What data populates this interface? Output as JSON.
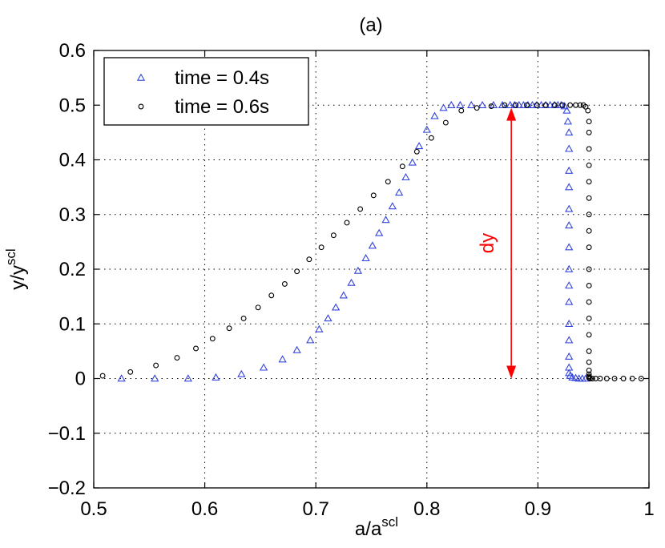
{
  "chart_data": {
    "type": "scatter",
    "title": "(a)",
    "xlabel": {
      "base": "a/a",
      "sup": "scl"
    },
    "ylabel": {
      "base": "y/y",
      "sup": "scl"
    },
    "xlim": [
      0.5,
      1.0
    ],
    "ylim": [
      -0.2,
      0.6
    ],
    "xticks": [
      0.5,
      0.6,
      0.7,
      0.8,
      0.9,
      1.0
    ],
    "xtick_labels": [
      "0.5",
      "0.6",
      "0.7",
      "0.8",
      "0.9",
      "1"
    ],
    "yticks": [
      -0.2,
      -0.1,
      0,
      0.1,
      0.2,
      0.3,
      0.4,
      0.5,
      0.6
    ],
    "ytick_labels": [
      "−0.2",
      "−0.1",
      "0",
      "0.1",
      "0.2",
      "0.3",
      "0.4",
      "0.5",
      "0.6"
    ],
    "grid": true,
    "legend_position": "top-left",
    "series": [
      {
        "name": "time = 0.4s",
        "marker": "triangle",
        "color": "#3344dd",
        "x": [
          0.525,
          0.555,
          0.585,
          0.61,
          0.633,
          0.653,
          0.67,
          0.683,
          0.695,
          0.703,
          0.711,
          0.718,
          0.725,
          0.732,
          0.738,
          0.745,
          0.751,
          0.757,
          0.763,
          0.769,
          0.775,
          0.781,
          0.787,
          0.793,
          0.8,
          0.807,
          0.815,
          0.822,
          0.83,
          0.84,
          0.85,
          0.86,
          0.868,
          0.875,
          0.879,
          0.883,
          0.887,
          0.891,
          0.895,
          0.899,
          0.903,
          0.907,
          0.911,
          0.915,
          0.918,
          0.921,
          0.924,
          0.926,
          0.927,
          0.928,
          0.928,
          0.928,
          0.928,
          0.928,
          0.928,
          0.928,
          0.928,
          0.928,
          0.928,
          0.928,
          0.928,
          0.928,
          0.928,
          0.928,
          0.929,
          0.931,
          0.934,
          0.937,
          0.94,
          0.943
        ],
        "y": [
          0.0,
          0.0,
          0.0,
          0.002,
          0.008,
          0.02,
          0.035,
          0.052,
          0.07,
          0.09,
          0.11,
          0.13,
          0.152,
          0.175,
          0.197,
          0.22,
          0.243,
          0.266,
          0.29,
          0.315,
          0.34,
          0.368,
          0.395,
          0.425,
          0.455,
          0.48,
          0.495,
          0.5,
          0.5,
          0.5,
          0.5,
          0.5,
          0.5,
          0.5,
          0.5,
          0.5,
          0.5,
          0.5,
          0.5,
          0.5,
          0.5,
          0.5,
          0.5,
          0.5,
          0.5,
          0.5,
          0.498,
          0.49,
          0.47,
          0.45,
          0.42,
          0.38,
          0.35,
          0.31,
          0.28,
          0.24,
          0.2,
          0.17,
          0.14,
          0.1,
          0.07,
          0.04,
          0.02,
          0.01,
          0.005,
          0.002,
          0.001,
          0.0,
          0.0,
          0.0
        ]
      },
      {
        "name": "time = 0.6s",
        "marker": "circle",
        "color": "#000000",
        "x": [
          0.508,
          0.533,
          0.556,
          0.575,
          0.592,
          0.607,
          0.622,
          0.635,
          0.648,
          0.66,
          0.672,
          0.683,
          0.694,
          0.705,
          0.716,
          0.728,
          0.74,
          0.752,
          0.765,
          0.778,
          0.791,
          0.804,
          0.817,
          0.831,
          0.845,
          0.858,
          0.87,
          0.88,
          0.89,
          0.899,
          0.907,
          0.915,
          0.922,
          0.929,
          0.934,
          0.938,
          0.941,
          0.943,
          0.945,
          0.946,
          0.946,
          0.946,
          0.946,
          0.946,
          0.946,
          0.946,
          0.946,
          0.946,
          0.946,
          0.946,
          0.946,
          0.946,
          0.946,
          0.946,
          0.946,
          0.946,
          0.946,
          0.946,
          0.946,
          0.946,
          0.947,
          0.949,
          0.952,
          0.956,
          0.962,
          0.969,
          0.977,
          0.985,
          0.993
        ],
        "y": [
          0.005,
          0.012,
          0.024,
          0.038,
          0.055,
          0.073,
          0.092,
          0.11,
          0.13,
          0.152,
          0.173,
          0.196,
          0.218,
          0.24,
          0.262,
          0.285,
          0.31,
          0.335,
          0.36,
          0.388,
          0.415,
          0.44,
          0.468,
          0.49,
          0.495,
          0.498,
          0.5,
          0.5,
          0.5,
          0.5,
          0.5,
          0.5,
          0.5,
          0.5,
          0.5,
          0.5,
          0.5,
          0.497,
          0.49,
          0.47,
          0.45,
          0.42,
          0.39,
          0.36,
          0.33,
          0.3,
          0.27,
          0.24,
          0.2,
          0.17,
          0.14,
          0.11,
          0.08,
          0.05,
          0.03,
          0.015,
          0.008,
          0.004,
          0.002,
          0.001,
          0.0,
          0.0,
          0.0,
          0.0,
          0.0,
          0.0,
          0.0,
          0.0,
          0.0
        ]
      }
    ],
    "annotation": {
      "text": "dy",
      "color": "#ff0000",
      "x": 0.876,
      "y_from": 0.0,
      "y_to": 0.495
    }
  }
}
